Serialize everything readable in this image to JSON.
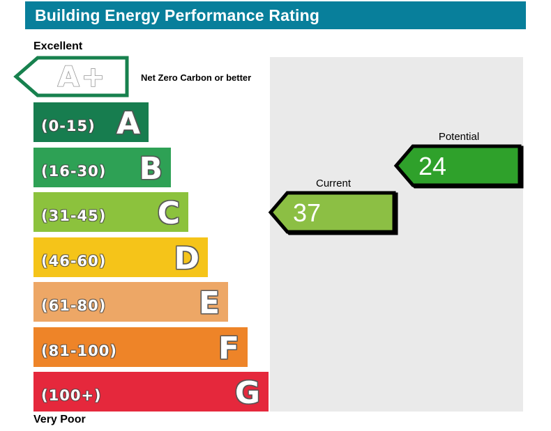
{
  "header": {
    "title": "Building Energy Performance Rating",
    "bg": "#087f9b"
  },
  "panel": {
    "bg": "#eaeaea"
  },
  "scale": {
    "best_label": "Excellent",
    "worst_label": "Very Poor",
    "net_zero": {
      "grade": "A+",
      "note": "Net Zero Carbon or better",
      "border_color": "#17814e"
    },
    "bands": [
      {
        "grade": "A",
        "range": "(0-15)",
        "color": "#177d4f"
      },
      {
        "grade": "B",
        "range": "(16-30)",
        "color": "#2ea155"
      },
      {
        "grade": "C",
        "range": "(31-45)",
        "color": "#8cc23d"
      },
      {
        "grade": "D",
        "range": "(46-60)",
        "color": "#f5c419"
      },
      {
        "grade": "E",
        "range": "(61-80)",
        "color": "#eda766"
      },
      {
        "grade": "F",
        "range": "(81-100)",
        "color": "#ee8428"
      },
      {
        "grade": "G",
        "range": "(100+)",
        "color": "#e5283c"
      }
    ]
  },
  "markers": {
    "current": {
      "label": "Current",
      "value": "37",
      "color": "#8cbf44"
    },
    "potential": {
      "label": "Potential",
      "value": "24",
      "color": "#2fa12b"
    }
  },
  "chart_data": {
    "type": "bar",
    "title": "Building Energy Performance Rating",
    "categories": [
      "A+",
      "A",
      "B",
      "C",
      "D",
      "E",
      "F",
      "G"
    ],
    "band_ranges": [
      "Net Zero Carbon or better",
      "0-15",
      "16-30",
      "31-45",
      "46-60",
      "61-80",
      "81-100",
      "100+"
    ],
    "band_colors": [
      "#ffffff",
      "#177d4f",
      "#2ea155",
      "#8cc23d",
      "#f5c419",
      "#eda766",
      "#ee8428",
      "#e5283c"
    ],
    "axis_labels": {
      "top": "Excellent",
      "bottom": "Very Poor"
    },
    "legend_position": "none",
    "markers": [
      {
        "name": "Current",
        "value": 37,
        "band": "C",
        "color": "#8cbf44"
      },
      {
        "name": "Potential",
        "value": 24,
        "band": "B",
        "color": "#2fa12b"
      }
    ]
  }
}
